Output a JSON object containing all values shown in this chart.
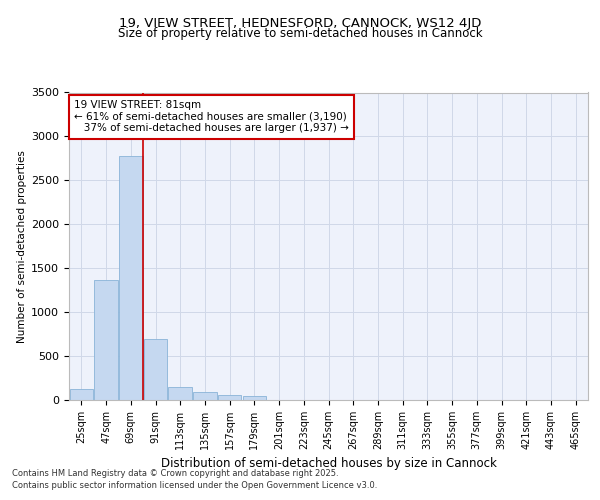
{
  "title1": "19, VIEW STREET, HEDNESFORD, CANNOCK, WS12 4JD",
  "title2": "Size of property relative to semi-detached houses in Cannock",
  "xlabel": "Distribution of semi-detached houses by size in Cannock",
  "ylabel": "Number of semi-detached properties",
  "categories": [
    "25sqm",
    "47sqm",
    "69sqm",
    "91sqm",
    "113sqm",
    "135sqm",
    "157sqm",
    "179sqm",
    "201sqm",
    "223sqm",
    "245sqm",
    "267sqm",
    "289sqm",
    "311sqm",
    "333sqm",
    "355sqm",
    "377sqm",
    "399sqm",
    "421sqm",
    "443sqm",
    "465sqm"
  ],
  "values": [
    130,
    1370,
    2780,
    700,
    150,
    90,
    55,
    40,
    5,
    2,
    1,
    0,
    0,
    0,
    0,
    0,
    0,
    0,
    0,
    0,
    0
  ],
  "bar_color": "#c5d8f0",
  "bar_edge_color": "#8ab4d8",
  "grid_color": "#d0d8e8",
  "vline_x": 2.5,
  "vline_color": "#cc0000",
  "annotation_line1": "19 VIEW STREET: 81sqm",
  "annotation_line2": "← 61% of semi-detached houses are smaller (3,190)",
  "annotation_line3": "   37% of semi-detached houses are larger (1,937) →",
  "annotation_box_color": "#cc0000",
  "ylim": [
    0,
    3500
  ],
  "yticks": [
    0,
    500,
    1000,
    1500,
    2000,
    2500,
    3000,
    3500
  ],
  "footnote1": "Contains HM Land Registry data © Crown copyright and database right 2025.",
  "footnote2": "Contains public sector information licensed under the Open Government Licence v3.0.",
  "background_color": "#eef2fb",
  "title1_fontsize": 9.5,
  "title2_fontsize": 8.5
}
